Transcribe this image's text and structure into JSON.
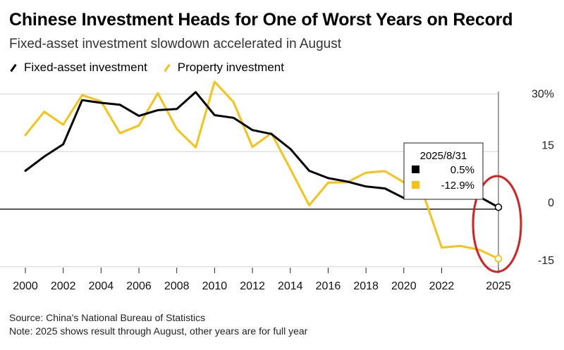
{
  "header": {
    "title": "Chinese Investment Heads for One of Worst Years on Record",
    "subtitle": "Fixed-asset investment slowdown accelerated in August"
  },
  "legend": [
    {
      "label": "Fixed-asset investment",
      "color": "#000000"
    },
    {
      "label": "Property investment",
      "color": "#f5c218"
    }
  ],
  "footer": {
    "source": "Source: China's National Bureau of Statistics",
    "note": "Note: 2025 shows result through August, other years are for full year"
  },
  "tooltip": {
    "date": "2025/8/31",
    "rows": [
      {
        "color": "#000000",
        "value": "0.5%"
      },
      {
        "color": "#f5c218",
        "value": "-12.9%"
      }
    ]
  },
  "highlight": {
    "color": "#d42020",
    "shape": "ellipse around 2025 values"
  },
  "chart_data": {
    "type": "line",
    "title": "Chinese Investment Heads for One of Worst Years on Record",
    "subtitle": "Fixed-asset investment slowdown accelerated in August",
    "x": [
      2000,
      2001,
      2002,
      2003,
      2004,
      2005,
      2006,
      2007,
      2008,
      2009,
      2010,
      2011,
      2012,
      2013,
      2014,
      2015,
      2016,
      2017,
      2018,
      2019,
      2020,
      2021,
      2022,
      2023,
      2024,
      2025
    ],
    "series": [
      {
        "name": "Fixed-asset investment",
        "color": "#000000",
        "values": [
          10.0,
          13.7,
          16.9,
          28.4,
          27.7,
          27.2,
          24.3,
          25.8,
          26.1,
          30.5,
          24.5,
          23.8,
          20.6,
          19.6,
          15.7,
          10.0,
          8.1,
          7.2,
          5.9,
          5.4,
          2.9,
          4.9,
          null,
          3.0,
          3.2,
          0.5
        ]
      },
      {
        "name": "Property investment",
        "color": "#f5c218",
        "values": [
          19.3,
          25.4,
          22.0,
          29.7,
          28.1,
          19.8,
          21.8,
          30.2,
          20.9,
          16.1,
          33.2,
          27.9,
          16.2,
          19.8,
          10.5,
          1.0,
          6.9,
          7.0,
          9.5,
          9.9,
          7.0,
          4.4,
          -10.0,
          -9.6,
          -10.6,
          -12.9
        ]
      }
    ],
    "x_ticks": [
      "2000",
      "2002",
      "2004",
      "2006",
      "2008",
      "2010",
      "2012",
      "2014",
      "2016",
      "2018",
      "2020",
      "2022",
      "2025"
    ],
    "y_ticks": [
      "-15",
      "0",
      "15",
      "30%"
    ],
    "ylim": [
      -16,
      33
    ],
    "xlim": [
      2000,
      2025
    ],
    "grid": "horizontal",
    "legend_position": "top-left",
    "y_axis_side": "right"
  }
}
